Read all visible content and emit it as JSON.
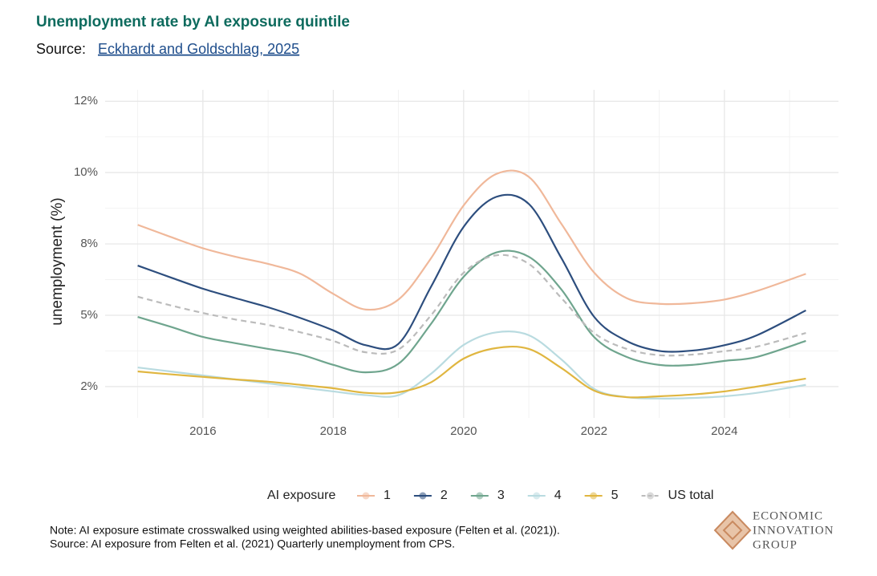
{
  "chart_data": {
    "type": "line",
    "title": "Unemployment rate by AI exposure quintile",
    "source_label": "Source:",
    "source_link": "Eckhardt and Goldschlag, 2025",
    "ylabel": "unemployment (%)",
    "legend_title": "AI exposure",
    "x": [
      2015,
      2015.5,
      2016,
      2016.5,
      2017,
      2017.5,
      2018,
      2018.5,
      2019,
      2019.5,
      2020,
      2020.5,
      2021,
      2021.5,
      2022,
      2022.5,
      2023,
      2023.5,
      2024,
      2024.5,
      2025.25
    ],
    "series": [
      {
        "name": "1",
        "color": "#f0b89a",
        "values": [
          8.17,
          7.75,
          7.35,
          7.05,
          6.8,
          6.45,
          5.75,
          5.2,
          5.55,
          7.0,
          8.85,
          9.95,
          9.85,
          8.2,
          6.5,
          5.6,
          5.4,
          5.42,
          5.55,
          5.85,
          6.45
        ]
      },
      {
        "name": "2",
        "color": "#2d4e7e",
        "values": [
          6.74,
          6.33,
          5.93,
          5.6,
          5.28,
          4.9,
          4.47,
          3.95,
          4.0,
          6.0,
          8.1,
          9.15,
          8.9,
          7.0,
          4.95,
          4.1,
          3.75,
          3.76,
          3.95,
          4.3,
          5.17
        ]
      },
      {
        "name": "3",
        "color": "#6fa58e",
        "values": [
          4.94,
          4.6,
          4.24,
          4.02,
          3.82,
          3.62,
          3.26,
          3.0,
          3.3,
          4.7,
          6.35,
          7.2,
          7.05,
          5.9,
          4.24,
          3.54,
          3.26,
          3.26,
          3.4,
          3.54,
          4.1
        ]
      },
      {
        "name": "4",
        "color": "#b9dbe0",
        "values": [
          3.17,
          3.03,
          2.89,
          2.75,
          2.61,
          2.47,
          2.33,
          2.2,
          2.2,
          2.95,
          3.96,
          4.4,
          4.3,
          3.45,
          2.42,
          2.13,
          2.08,
          2.1,
          2.16,
          2.28,
          2.56
        ]
      },
      {
        "name": "5",
        "color": "#e0b640",
        "values": [
          3.03,
          2.93,
          2.84,
          2.75,
          2.67,
          2.56,
          2.44,
          2.28,
          2.3,
          2.65,
          3.48,
          3.85,
          3.82,
          3.15,
          2.36,
          2.13,
          2.16,
          2.22,
          2.33,
          2.5,
          2.78
        ]
      },
      {
        "name": "US total",
        "color": "#bbbbbb",
        "dashed": true,
        "values": [
          5.65,
          5.35,
          5.08,
          4.85,
          4.66,
          4.4,
          4.1,
          3.7,
          3.8,
          5.0,
          6.49,
          7.1,
          6.8,
          5.6,
          4.38,
          3.82,
          3.6,
          3.62,
          3.74,
          3.9,
          4.38
        ]
      }
    ],
    "xlim": [
      2014.5,
      2025.75
    ],
    "xticks": [
      2016,
      2018,
      2020,
      2022,
      2024
    ],
    "ylim": [
      1.4,
      12.9
    ],
    "yticks": [
      {
        "value": 2.5,
        "label": "2%"
      },
      {
        "value": 5,
        "label": "5%"
      },
      {
        "value": 7.5,
        "label": "8%"
      },
      {
        "value": 10,
        "label": "10%"
      },
      {
        "value": 12.5,
        "label": "12%"
      }
    ],
    "grid": true,
    "legend": "bottom",
    "notes": [
      "Note: AI exposure estimate crosswalked using weighted abilities-based exposure  (Felten et al. (2021)).",
      "Source: AI exposure from Felten et al. (2021) Quarterly unemployment from CPS."
    ],
    "logo": [
      "ECONOMIC",
      "INNOVATION",
      "GROUP"
    ]
  }
}
